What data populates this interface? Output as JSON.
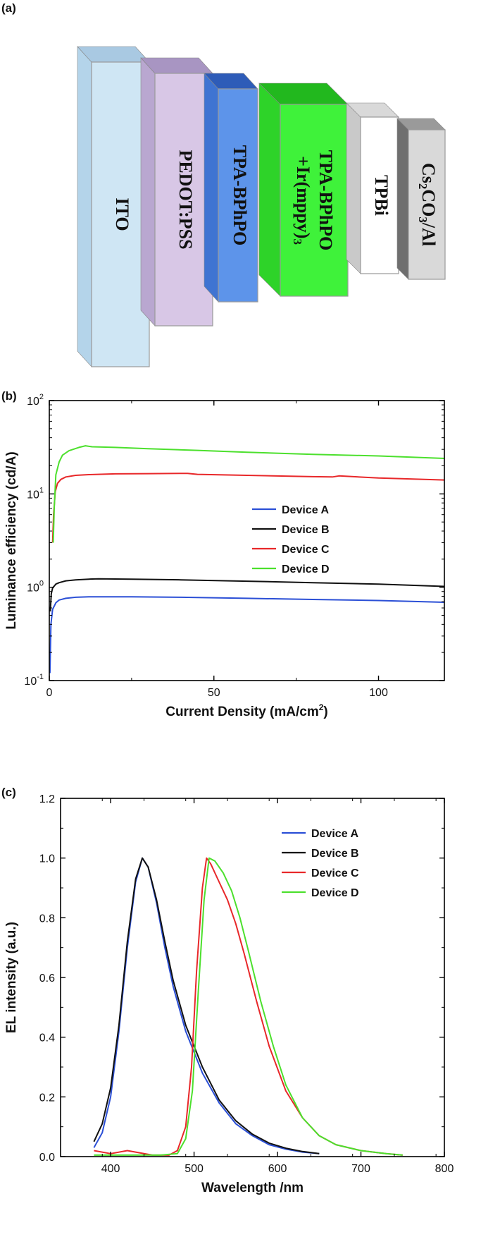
{
  "panels": {
    "a": "(a)",
    "b": "(b)",
    "c": "(c)"
  },
  "device_stack": {
    "layers": [
      {
        "label": "ITO",
        "front": "#cfe6f4",
        "top": "#a9c9e2",
        "side": "#b4d4ea"
      },
      {
        "label": "PEDOT:PSS",
        "front": "#d8c7e6",
        "top": "#a895c2",
        "side": "#b9a7d0"
      },
      {
        "label": "TPA-BPhPO",
        "front": "#5d94ea",
        "top": "#2e5cb8",
        "side": "#3f74d2"
      },
      {
        "label": "TPA-BPhPO",
        "label2": "+Ir(mppy)",
        "sub2": "3",
        "front": "#3ff23a",
        "top": "#22b81e",
        "side": "#2ed329"
      },
      {
        "label": "TPBi",
        "front": "#ffffff",
        "top": "#d9d9d9",
        "side": "#c9c9c9"
      },
      {
        "label": "Cs",
        "sub1": "2",
        "label_mid": "CO",
        "sub2": "3",
        "label_end": "/Al",
        "front": "#d9d9d9",
        "top": "#9a9a9a",
        "side": "#6f6f6f"
      }
    ]
  },
  "chart_data": [
    {
      "type": "line",
      "xlabel": "Current Density (mA/cm",
      "xlabel_sup": "2",
      "xlabel_end": ")",
      "ylabel": "Luminance efficiency (cd/A)",
      "xlim": [
        0,
        120
      ],
      "ylim": [
        0.1,
        100
      ],
      "yscale": "log",
      "xticks": [
        0,
        50,
        100
      ],
      "yticks": [
        {
          "base": "10",
          "exp": "-1",
          "value": 0.1
        },
        {
          "base": "10",
          "exp": "0",
          "value": 1
        },
        {
          "base": "10",
          "exp": "1",
          "value": 10
        },
        {
          "base": "10",
          "exp": "2",
          "value": 100
        }
      ],
      "legend_position": "center-right",
      "series": [
        {
          "name": "Device A",
          "color": "#2b4fd6",
          "x": [
            0.2,
            0.5,
            1,
            2,
            3,
            5,
            8,
            12,
            15,
            25,
            40,
            60,
            80,
            100,
            120
          ],
          "y": [
            0.12,
            0.4,
            0.58,
            0.68,
            0.73,
            0.76,
            0.78,
            0.79,
            0.79,
            0.79,
            0.78,
            0.76,
            0.74,
            0.72,
            0.69
          ]
        },
        {
          "name": "Device B",
          "color": "#111111",
          "x": [
            0.3,
            0.6,
            1,
            2,
            3,
            5,
            8,
            12,
            15,
            25,
            40,
            60,
            80,
            100,
            120
          ],
          "y": [
            0.55,
            0.85,
            0.98,
            1.08,
            1.12,
            1.17,
            1.2,
            1.22,
            1.23,
            1.22,
            1.2,
            1.16,
            1.12,
            1.08,
            1.02
          ]
        },
        {
          "name": "Device C",
          "color": "#e8282a",
          "x": [
            1,
            1.3,
            1.8,
            2.5,
            3.5,
            5,
            8,
            12,
            20,
            30,
            42,
            45,
            60,
            80,
            86,
            88,
            100,
            120
          ],
          "y": [
            3.0,
            6.0,
            10.5,
            13.0,
            14.3,
            15.2,
            15.8,
            16.1,
            16.4,
            16.5,
            16.6,
            16.2,
            15.8,
            15.3,
            15.2,
            15.6,
            14.8,
            14.1
          ]
        },
        {
          "name": "Device D",
          "color": "#4ce02d",
          "x": [
            1.2,
            1.5,
            2,
            3,
            4,
            6,
            9,
            11,
            13,
            20,
            30,
            45,
            60,
            80,
            100,
            120
          ],
          "y": [
            3.0,
            7.0,
            16.0,
            22.0,
            26.0,
            29.0,
            31.5,
            32.8,
            32.0,
            31.5,
            30.5,
            29.3,
            28.0,
            26.5,
            25.5,
            24.0
          ]
        }
      ]
    },
    {
      "type": "line",
      "xlabel": "Wavelength /nm",
      "ylabel": "EL intensity (a.u.)",
      "xlim": [
        340,
        800
      ],
      "ylim": [
        0,
        1.2
      ],
      "xticks": [
        400,
        500,
        600,
        700,
        800
      ],
      "yticks": [
        "0.0",
        "0.2",
        "0.4",
        "0.6",
        "0.8",
        "1.0",
        "1.2"
      ],
      "legend_position": "top-right",
      "series": [
        {
          "name": "Device A",
          "color": "#2b4fd6",
          "x": [
            380,
            390,
            400,
            410,
            420,
            430,
            438,
            445,
            455,
            465,
            475,
            490,
            510,
            530,
            550,
            570,
            590,
            610,
            630,
            650
          ],
          "y": [
            0.03,
            0.08,
            0.2,
            0.42,
            0.7,
            0.92,
            1.0,
            0.97,
            0.85,
            0.7,
            0.57,
            0.42,
            0.28,
            0.18,
            0.11,
            0.07,
            0.04,
            0.025,
            0.015,
            0.01
          ]
        },
        {
          "name": "Device B",
          "color": "#111111",
          "x": [
            380,
            390,
            400,
            410,
            420,
            430,
            438,
            445,
            455,
            465,
            475,
            490,
            510,
            530,
            550,
            570,
            590,
            610,
            630,
            650
          ],
          "y": [
            0.05,
            0.11,
            0.23,
            0.44,
            0.72,
            0.93,
            1.0,
            0.97,
            0.86,
            0.72,
            0.59,
            0.44,
            0.3,
            0.19,
            0.12,
            0.075,
            0.045,
            0.028,
            0.017,
            0.01
          ]
        },
        {
          "name": "Device C",
          "color": "#e8282a",
          "x": [
            380,
            400,
            420,
            450,
            470,
            480,
            490,
            497,
            503,
            510,
            515,
            520,
            530,
            540,
            550,
            560,
            575,
            590,
            610,
            630,
            650,
            670,
            700,
            730,
            750
          ],
          "y": [
            0.02,
            0.01,
            0.02,
            0.005,
            0.005,
            0.02,
            0.1,
            0.3,
            0.62,
            0.9,
            1.0,
            0.98,
            0.92,
            0.86,
            0.78,
            0.68,
            0.52,
            0.37,
            0.22,
            0.13,
            0.07,
            0.04,
            0.02,
            0.01,
            0.005
          ]
        },
        {
          "name": "Device D",
          "color": "#4ce02d",
          "x": [
            380,
            420,
            460,
            480,
            490,
            498,
            505,
            512,
            518,
            525,
            535,
            545,
            555,
            565,
            580,
            595,
            610,
            630,
            650,
            670,
            700,
            730,
            750
          ],
          "y": [
            0.005,
            0.005,
            0.005,
            0.01,
            0.06,
            0.22,
            0.55,
            0.86,
            1.0,
            0.99,
            0.95,
            0.89,
            0.8,
            0.69,
            0.52,
            0.37,
            0.24,
            0.13,
            0.07,
            0.04,
            0.02,
            0.01,
            0.005
          ]
        }
      ]
    }
  ]
}
